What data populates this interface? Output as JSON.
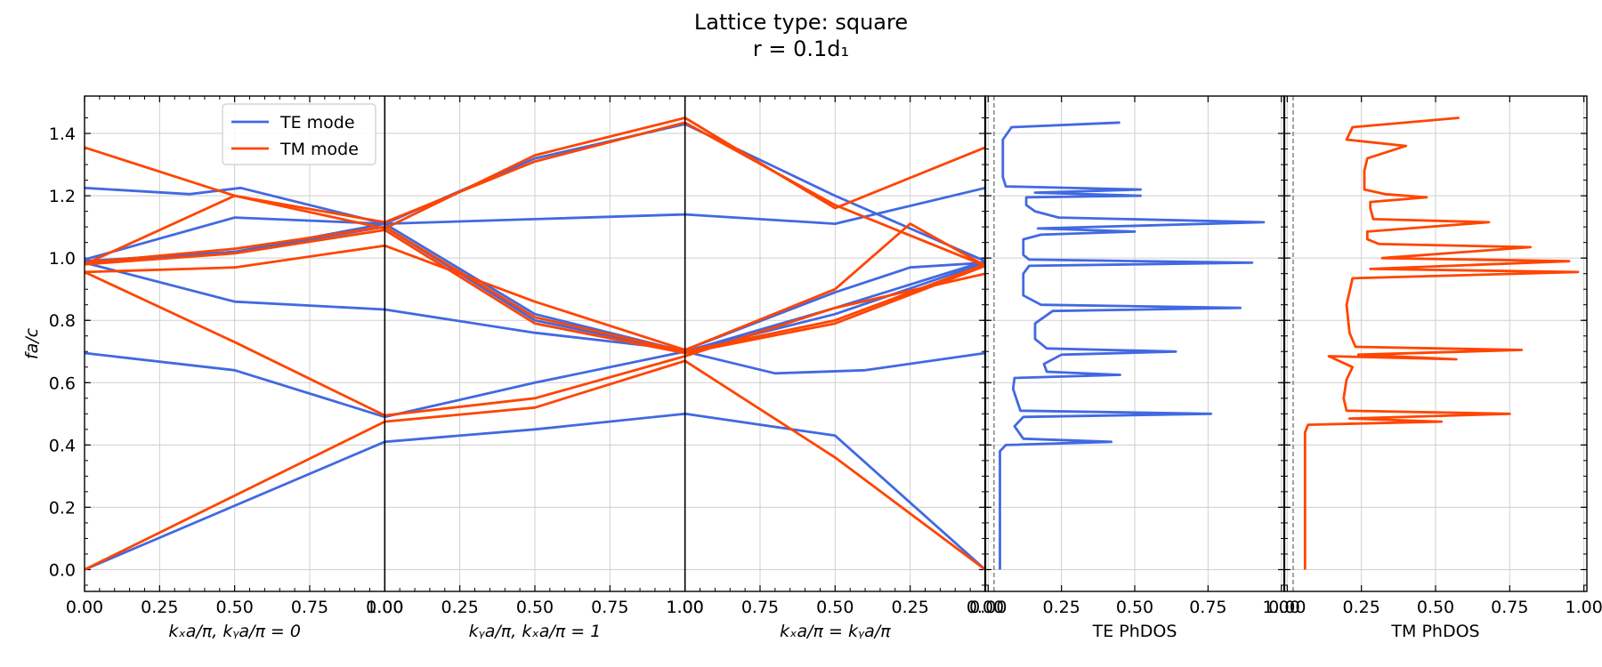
{
  "chart_data": {
    "type": "line",
    "title": "Lattice type: square",
    "subtitle": "r = 0.1d₁",
    "colors": {
      "te": "#4169e1",
      "tm": "#ff4500"
    },
    "band_panel": {
      "ylabel": "fa/c",
      "ylim": [
        -0.07,
        1.52
      ],
      "yticks": [
        "0.0",
        "0.2",
        "0.4",
        "0.6",
        "0.8",
        "1.0",
        "1.2",
        "1.4"
      ],
      "legend": {
        "position": "upper-left",
        "entries": [
          "TE mode",
          "TM mode"
        ]
      },
      "segments": [
        {
          "label": "kₓa/π, kᵧa/π = 0",
          "x_ticks": [
            "0.00",
            "0.25",
            "0.50",
            "0.75",
            "1.00"
          ]
        },
        {
          "label": "kᵧa/π, kₓa/π = 1",
          "x_ticks": [
            "0.00",
            "0.25",
            "0.50",
            "0.75",
            "1.00"
          ]
        },
        {
          "label": "kₓa/π = kᵧa/π",
          "x_ticks": [
            "1.00",
            "0.75",
            "0.50",
            "0.25",
            "0.00"
          ]
        }
      ],
      "series": [
        {
          "name": "TE mode",
          "mode": "TE",
          "points": [
            [
              0,
              0
            ],
            [
              1,
              0.41
            ],
            [
              1.5,
              0.45
            ],
            [
              2,
              0.5
            ],
            [
              2.5,
              0.43
            ],
            [
              3,
              0
            ]
          ]
        },
        {
          "name": "",
          "mode": "TE",
          "points": [
            [
              0,
              0.695
            ],
            [
              0.5,
              0.64
            ],
            [
              1,
              0.49
            ],
            [
              1.5,
              0.6
            ],
            [
              2,
              0.7
            ],
            [
              2.3,
              0.63
            ],
            [
              2.6,
              0.64
            ],
            [
              3,
              0.695
            ]
          ]
        },
        {
          "name": "",
          "mode": "TE",
          "points": [
            [
              0,
              0.985
            ],
            [
              0.5,
              0.86
            ],
            [
              1,
              0.835
            ],
            [
              1.5,
              0.76
            ],
            [
              2,
              0.705
            ],
            [
              2.5,
              0.89
            ],
            [
              2.75,
              0.97
            ],
            [
              3,
              0.985
            ]
          ]
        },
        {
          "name": "",
          "mode": "TE",
          "points": [
            [
              0,
              0.995
            ],
            [
              0.5,
              1.13
            ],
            [
              1,
              1.11
            ],
            [
              1.5,
              1.125
            ],
            [
              2,
              1.14
            ],
            [
              2.5,
              1.11
            ],
            [
              3,
              1.225
            ]
          ]
        },
        {
          "name": "",
          "mode": "TE",
          "points": [
            [
              0,
              1.225
            ],
            [
              0.35,
              1.205
            ],
            [
              0.52,
              1.225
            ],
            [
              1,
              1.11
            ],
            [
              1.5,
              1.32
            ],
            [
              2,
              1.43
            ],
            [
              2.5,
              1.2
            ],
            [
              3,
              0.99
            ]
          ]
        },
        {
          "name": "",
          "mode": "TE",
          "points": [
            [
              0,
              0.985
            ],
            [
              0.5,
              1.02
            ],
            [
              1,
              1.1
            ],
            [
              1.5,
              0.8
            ],
            [
              2,
              0.7
            ],
            [
              2.5,
              0.82
            ],
            [
              3,
              0.985
            ]
          ]
        },
        {
          "name": "",
          "mode": "TE",
          "points": [
            [
              0,
              0.99
            ],
            [
              0.5,
              1.02
            ],
            [
              1,
              1.11
            ],
            [
              1.5,
              0.82
            ],
            [
              2,
              0.7
            ],
            [
              2.5,
              0.84
            ],
            [
              3,
              0.99
            ]
          ]
        },
        {
          "name": "TM mode",
          "mode": "TM",
          "points": [
            [
              0,
              0
            ],
            [
              1,
              0.475
            ],
            [
              1.5,
              0.52
            ],
            [
              2,
              0.67
            ],
            [
              2.5,
              0.36
            ],
            [
              3,
              0
            ]
          ]
        },
        {
          "name": "",
          "mode": "TM",
          "points": [
            [
              0,
              0.955
            ],
            [
              0.5,
              0.73
            ],
            [
              1,
              0.495
            ],
            [
              1.5,
              0.55
            ],
            [
              2,
              0.685
            ],
            [
              2.5,
              0.84
            ],
            [
              3,
              0.95
            ]
          ]
        },
        {
          "name": "",
          "mode": "TM",
          "points": [
            [
              0,
              0.955
            ],
            [
              0.5,
              0.97
            ],
            [
              1,
              1.04
            ],
            [
              1.5,
              0.86
            ],
            [
              2,
              0.705
            ],
            [
              2.5,
              0.9
            ],
            [
              2.75,
              1.11
            ],
            [
              3,
              0.975
            ]
          ]
        },
        {
          "name": "",
          "mode": "TM",
          "points": [
            [
              0,
              1.355
            ],
            [
              0.5,
              1.2
            ],
            [
              1,
              1.095
            ],
            [
              1.5,
              1.33
            ],
            [
              2,
              1.45
            ],
            [
              2.5,
              1.16
            ],
            [
              3,
              1.355
            ]
          ]
        },
        {
          "name": "",
          "mode": "TM",
          "points": [
            [
              0,
              0.98
            ],
            [
              0.5,
              1.2
            ],
            [
              1,
              1.115
            ],
            [
              1.5,
              1.31
            ],
            [
              2,
              1.435
            ],
            [
              2.5,
              1.17
            ],
            [
              3,
              0.975
            ]
          ]
        },
        {
          "name": "",
          "mode": "TM",
          "points": [
            [
              0,
              0.98
            ],
            [
              0.5,
              1.015
            ],
            [
              1,
              1.09
            ],
            [
              1.5,
              0.79
            ],
            [
              2,
              0.695
            ],
            [
              2.5,
              0.79
            ],
            [
              3,
              0.975
            ]
          ]
        },
        {
          "name": "",
          "mode": "TM",
          "points": [
            [
              0,
              0.985
            ],
            [
              0.5,
              1.03
            ],
            [
              1,
              1.1
            ],
            [
              1.5,
              0.81
            ],
            [
              2,
              0.7
            ],
            [
              2.5,
              0.8
            ],
            [
              3,
              0.98
            ]
          ]
        }
      ]
    },
    "dos_panels": [
      {
        "xlabel": "TE PhDOS",
        "mode": "TE",
        "xlim": [
          -0.01,
          1.01
        ],
        "x_ticks": [
          "0.00",
          "0.25",
          "0.50",
          "0.75",
          "1.00"
        ],
        "baseline": 0.02,
        "pairs": [
          [
            0.04,
            0.0
          ],
          [
            0.04,
            0.2
          ],
          [
            0.04,
            0.38
          ],
          [
            0.06,
            0.4
          ],
          [
            0.42,
            0.41
          ],
          [
            0.12,
            0.42
          ],
          [
            0.09,
            0.46
          ],
          [
            0.12,
            0.49
          ],
          [
            0.76,
            0.5
          ],
          [
            0.11,
            0.51
          ],
          [
            0.085,
            0.58
          ],
          [
            0.09,
            0.615
          ],
          [
            0.45,
            0.625
          ],
          [
            0.2,
            0.635
          ],
          [
            0.19,
            0.66
          ],
          [
            0.25,
            0.69
          ],
          [
            0.64,
            0.7
          ],
          [
            0.2,
            0.71
          ],
          [
            0.16,
            0.74
          ],
          [
            0.16,
            0.79
          ],
          [
            0.22,
            0.83
          ],
          [
            0.86,
            0.84
          ],
          [
            0.18,
            0.85
          ],
          [
            0.12,
            0.88
          ],
          [
            0.12,
            0.95
          ],
          [
            0.14,
            0.975
          ],
          [
            0.9,
            0.985
          ],
          [
            0.14,
            0.995
          ],
          [
            0.12,
            1.01
          ],
          [
            0.12,
            1.06
          ],
          [
            0.18,
            1.075
          ],
          [
            0.5,
            1.085
          ],
          [
            0.17,
            1.095
          ],
          [
            0.94,
            1.115
          ],
          [
            0.24,
            1.13
          ],
          [
            0.16,
            1.15
          ],
          [
            0.13,
            1.17
          ],
          [
            0.13,
            1.195
          ],
          [
            0.52,
            1.2
          ],
          [
            0.16,
            1.21
          ],
          [
            0.52,
            1.22
          ],
          [
            0.06,
            1.23
          ],
          [
            0.05,
            1.26
          ],
          [
            0.05,
            1.38
          ],
          [
            0.08,
            1.42
          ],
          [
            0.45,
            1.435
          ]
        ]
      },
      {
        "xlabel": "TM PhDOS",
        "mode": "TM",
        "xlim": [
          -0.01,
          1.01
        ],
        "x_ticks": [
          "0.00",
          "0.25",
          "0.50",
          "0.75",
          "1.00"
        ],
        "baseline": 0.02,
        "pairs": [
          [
            0.06,
            0.0
          ],
          [
            0.06,
            0.2
          ],
          [
            0.06,
            0.44
          ],
          [
            0.07,
            0.465
          ],
          [
            0.52,
            0.475
          ],
          [
            0.21,
            0.485
          ],
          [
            0.75,
            0.5
          ],
          [
            0.2,
            0.51
          ],
          [
            0.19,
            0.55
          ],
          [
            0.2,
            0.61
          ],
          [
            0.22,
            0.65
          ],
          [
            0.14,
            0.685
          ],
          [
            0.57,
            0.675
          ],
          [
            0.24,
            0.69
          ],
          [
            0.79,
            0.705
          ],
          [
            0.23,
            0.715
          ],
          [
            0.21,
            0.76
          ],
          [
            0.2,
            0.85
          ],
          [
            0.22,
            0.935
          ],
          [
            0.98,
            0.955
          ],
          [
            0.28,
            0.965
          ],
          [
            0.95,
            0.99
          ],
          [
            0.32,
            1.0
          ],
          [
            0.82,
            1.035
          ],
          [
            0.31,
            1.045
          ],
          [
            0.27,
            1.06
          ],
          [
            0.27,
            1.085
          ],
          [
            0.68,
            1.115
          ],
          [
            0.29,
            1.125
          ],
          [
            0.28,
            1.16
          ],
          [
            0.28,
            1.18
          ],
          [
            0.47,
            1.195
          ],
          [
            0.33,
            1.205
          ],
          [
            0.26,
            1.22
          ],
          [
            0.26,
            1.28
          ],
          [
            0.27,
            1.32
          ],
          [
            0.4,
            1.36
          ],
          [
            0.2,
            1.38
          ],
          [
            0.22,
            1.42
          ],
          [
            0.58,
            1.45
          ]
        ]
      }
    ]
  }
}
